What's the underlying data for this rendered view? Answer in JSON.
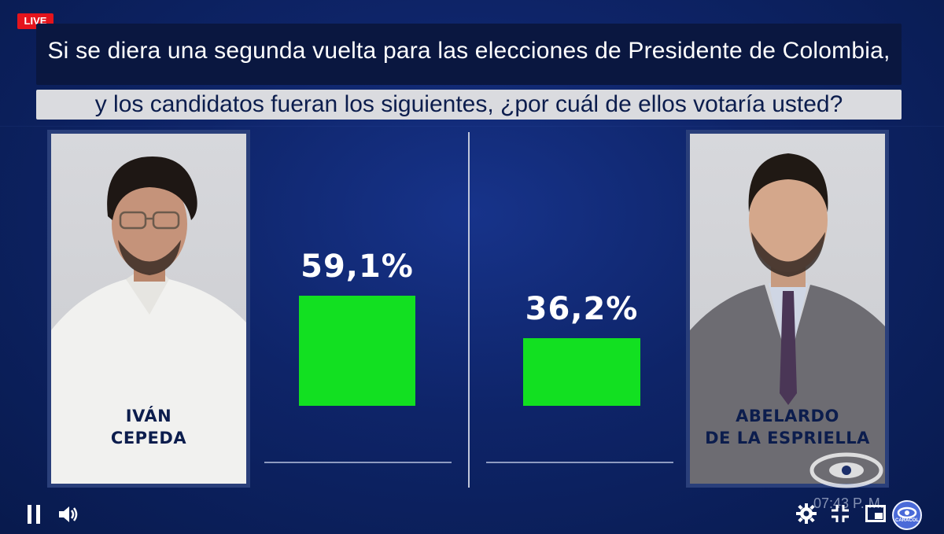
{
  "live_label": "LIVE",
  "question": {
    "line1": "Si se diera una segunda vuelta para las elecciones de Presidente de Colombia,",
    "line2": "y los candidatos fueran los siguientes, ¿por cuál de ellos votaría usted?"
  },
  "candidates": [
    {
      "name_line1": "IVÁN",
      "name_line2": "CEPEDA",
      "percent_label": "59,1%"
    },
    {
      "name_line1": "ABELARDO",
      "name_line2": "DE LA ESPRIELLA",
      "percent_label": "36,2%"
    }
  ],
  "chart_data": {
    "type": "bar",
    "categories": [
      "IVÁN CEPEDA",
      "ABELARDO DE LA ESPRIELLA"
    ],
    "values": [
      59.1,
      36.2
    ],
    "value_labels": [
      "59,1%",
      "36,2%"
    ],
    "bar_color": "#12e021",
    "grid": false
  },
  "timestamp": "07:43 P. M.",
  "channel_badge": "CARACOL",
  "colors": {
    "background": "#0e2468",
    "bar": "#12e021",
    "live": "#e4141c",
    "name_text": "#0c1d4d"
  },
  "controls": {
    "icons": [
      "pause-icon",
      "volume-icon",
      "settings-icon",
      "exit-fullscreen-icon",
      "picture-in-picture-icon"
    ]
  }
}
